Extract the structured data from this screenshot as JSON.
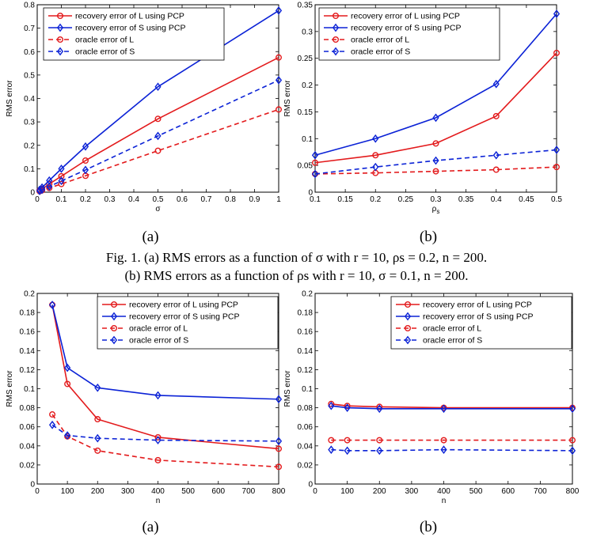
{
  "caption": {
    "line1": "Fig. 1.   (a) RMS errors as a function of σ with r = 10, ρs = 0.2, n = 200.",
    "line2": "(b) RMS errors as a function of ρs with r = 10, σ = 0.1, n = 200."
  },
  "colors": {
    "red": "#e31a1c",
    "blue": "#0b22d6"
  },
  "chart_data": [
    {
      "id": "top-left",
      "type": "line",
      "panel_label": "(a)",
      "xlabel": "σ",
      "ylabel": "RMS error",
      "xlim": [
        0,
        1
      ],
      "ylim": [
        0,
        0.8
      ],
      "xticks": [
        0,
        0.1,
        0.2,
        0.3,
        0.4,
        0.5,
        0.6,
        0.7,
        0.8,
        0.9,
        1
      ],
      "xtick_labels": [
        "0",
        "0.1",
        "0.2",
        "0.3",
        "0.4",
        "0.5",
        "0.6",
        "0.7",
        "0.8",
        "0.9",
        "1"
      ],
      "yticks": [
        0,
        0.1,
        0.2,
        0.3,
        0.4,
        0.5,
        0.6,
        0.7,
        0.8
      ],
      "ytick_labels": [
        "0",
        "0.1",
        "0.2",
        "0.3",
        "0.4",
        "0.5",
        "0.6",
        "0.7",
        "0.8"
      ],
      "legend_position": "top-left",
      "series": [
        {
          "name": "recovery error of L using PCP",
          "color": "red",
          "dash": false,
          "marker": "circle",
          "x": [
            0.01,
            0.02,
            0.05,
            0.1,
            0.2,
            0.5,
            1.0
          ],
          "y": [
            0.008,
            0.014,
            0.035,
            0.068,
            0.135,
            0.313,
            0.575
          ]
        },
        {
          "name": "recovery error of S using PCP",
          "color": "blue",
          "dash": false,
          "marker": "diamond",
          "x": [
            0.01,
            0.02,
            0.05,
            0.1,
            0.2,
            0.5,
            1.0
          ],
          "y": [
            0.01,
            0.02,
            0.05,
            0.1,
            0.195,
            0.45,
            0.775
          ]
        },
        {
          "name": "oracle error of L",
          "color": "red",
          "dash": true,
          "marker": "circle",
          "x": [
            0.01,
            0.02,
            0.05,
            0.1,
            0.2,
            0.5,
            1.0
          ],
          "y": [
            0.004,
            0.008,
            0.018,
            0.035,
            0.07,
            0.177,
            0.353
          ]
        },
        {
          "name": "oracle error of S",
          "color": "blue",
          "dash": true,
          "marker": "diamond",
          "x": [
            0.01,
            0.02,
            0.05,
            0.1,
            0.2,
            0.5,
            1.0
          ],
          "y": [
            0.005,
            0.01,
            0.024,
            0.048,
            0.095,
            0.24,
            0.478
          ]
        }
      ]
    },
    {
      "id": "top-right",
      "type": "line",
      "panel_label": "(b)",
      "xlabel": "ρs",
      "ylabel": "RMS error",
      "xlim": [
        0.1,
        0.5
      ],
      "ylim": [
        0,
        0.35
      ],
      "xticks": [
        0.1,
        0.15,
        0.2,
        0.25,
        0.3,
        0.35,
        0.4,
        0.45,
        0.5
      ],
      "xtick_labels": [
        "0.1",
        "0.15",
        "0.2",
        "0.25",
        "0.3",
        "0.35",
        "0.4",
        "0.45",
        "0.5"
      ],
      "yticks": [
        0,
        0.05,
        0.1,
        0.15,
        0.2,
        0.25,
        0.3,
        0.35
      ],
      "ytick_labels": [
        "0",
        "0.05",
        "0.1",
        "0.15",
        "0.2",
        "0.25",
        "0.3",
        "0.35"
      ],
      "legend_position": "top-left",
      "series": [
        {
          "name": "recovery error of L using PCP",
          "color": "red",
          "dash": false,
          "marker": "circle",
          "x": [
            0.1,
            0.2,
            0.3,
            0.4,
            0.5
          ],
          "y": [
            0.055,
            0.069,
            0.091,
            0.142,
            0.26
          ]
        },
        {
          "name": "recovery error of S using PCP",
          "color": "blue",
          "dash": false,
          "marker": "diamond",
          "x": [
            0.1,
            0.2,
            0.3,
            0.4,
            0.5
          ],
          "y": [
            0.069,
            0.1,
            0.139,
            0.202,
            0.333
          ]
        },
        {
          "name": "oracle error of L",
          "color": "red",
          "dash": true,
          "marker": "circle",
          "x": [
            0.1,
            0.2,
            0.3,
            0.4,
            0.5
          ],
          "y": [
            0.034,
            0.036,
            0.039,
            0.042,
            0.047
          ]
        },
        {
          "name": "oracle error of S",
          "color": "blue",
          "dash": true,
          "marker": "diamond",
          "x": [
            0.1,
            0.2,
            0.3,
            0.4,
            0.5
          ],
          "y": [
            0.034,
            0.047,
            0.059,
            0.069,
            0.079
          ]
        }
      ]
    },
    {
      "id": "bottom-left",
      "type": "line",
      "panel_label": "(a)",
      "xlabel": "n",
      "ylabel": "RMS error",
      "xlim": [
        0,
        800
      ],
      "ylim": [
        0,
        0.2
      ],
      "xticks": [
        0,
        100,
        200,
        300,
        400,
        500,
        600,
        700,
        800
      ],
      "xtick_labels": [
        "0",
        "100",
        "200",
        "300",
        "400",
        "500",
        "600",
        "700",
        "800"
      ],
      "yticks": [
        0,
        0.02,
        0.04,
        0.06,
        0.08,
        0.1,
        0.12,
        0.14,
        0.16,
        0.18,
        0.2
      ],
      "ytick_labels": [
        "0",
        "0.02",
        "0.04",
        "0.06",
        "0.08",
        "0.1",
        "0.12",
        "0.14",
        "0.16",
        "0.18",
        "0.2"
      ],
      "legend_position": "top-right",
      "series": [
        {
          "name": "recovery error of L using PCP",
          "color": "red",
          "dash": false,
          "marker": "circle",
          "x": [
            50,
            100,
            200,
            400,
            800
          ],
          "y": [
            0.188,
            0.105,
            0.068,
            0.049,
            0.037
          ]
        },
        {
          "name": "recovery error of S using PCP",
          "color": "blue",
          "dash": false,
          "marker": "diamond",
          "x": [
            50,
            100,
            200,
            400,
            800
          ],
          "y": [
            0.188,
            0.122,
            0.101,
            0.093,
            0.089
          ]
        },
        {
          "name": "oracle error of L",
          "color": "red",
          "dash": true,
          "marker": "circle",
          "x": [
            50,
            100,
            200,
            400,
            800
          ],
          "y": [
            0.073,
            0.05,
            0.035,
            0.025,
            0.018
          ]
        },
        {
          "name": "oracle error of S",
          "color": "blue",
          "dash": true,
          "marker": "diamond",
          "x": [
            50,
            100,
            200,
            400,
            800
          ],
          "y": [
            0.062,
            0.051,
            0.048,
            0.046,
            0.045
          ]
        }
      ]
    },
    {
      "id": "bottom-right",
      "type": "line",
      "panel_label": "(b)",
      "xlabel": "n",
      "ylabel": "RMS error",
      "xlim": [
        0,
        800
      ],
      "ylim": [
        0,
        0.2
      ],
      "xticks": [
        0,
        100,
        200,
        300,
        400,
        500,
        600,
        700,
        800
      ],
      "xtick_labels": [
        "0",
        "100",
        "200",
        "300",
        "400",
        "500",
        "600",
        "700",
        "800"
      ],
      "yticks": [
        0,
        0.02,
        0.04,
        0.06,
        0.08,
        0.1,
        0.12,
        0.14,
        0.16,
        0.18,
        0.2
      ],
      "ytick_labels": [
        "0",
        "0.02",
        "0.04",
        "0.06",
        "0.08",
        "0.1",
        "0.12",
        "0.14",
        "0.16",
        "0.18",
        "0.2"
      ],
      "legend_position": "top-right",
      "series": [
        {
          "name": "recovery error of L using PCP",
          "color": "red",
          "dash": false,
          "marker": "circle",
          "x": [
            50,
            100,
            200,
            400,
            800
          ],
          "y": [
            0.084,
            0.082,
            0.081,
            0.08,
            0.08
          ]
        },
        {
          "name": "recovery error of S using PCP",
          "color": "blue",
          "dash": false,
          "marker": "diamond",
          "x": [
            50,
            100,
            200,
            400,
            800
          ],
          "y": [
            0.082,
            0.08,
            0.079,
            0.079,
            0.079
          ]
        },
        {
          "name": "oracle error of L",
          "color": "red",
          "dash": true,
          "marker": "circle",
          "x": [
            50,
            100,
            200,
            400,
            800
          ],
          "y": [
            0.046,
            0.046,
            0.046,
            0.046,
            0.046
          ]
        },
        {
          "name": "oracle error of S",
          "color": "blue",
          "dash": true,
          "marker": "diamond",
          "x": [
            50,
            100,
            200,
            400,
            800
          ],
          "y": [
            0.036,
            0.035,
            0.035,
            0.036,
            0.035
          ]
        }
      ]
    }
  ]
}
